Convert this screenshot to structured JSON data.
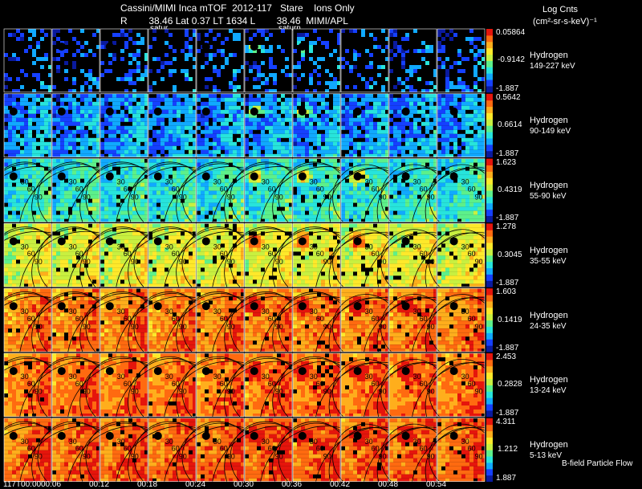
{
  "header": {
    "line1": "Cassini/MIMI Inca mTOF  2012-117   Stare    Ions Only",
    "line2": "R        38.46 Lat 0.37 LT 1634 L        38.46  MIMI/APL",
    "units_title": "Log Cnts",
    "units_expr": "(cm²-sr-s-keV)⁻¹"
  },
  "saturn_labels": [
    "satur",
    "saturn"
  ],
  "footer_label": "B-field Particle Flow",
  "chart_data": {
    "type": "heatmap",
    "title": "Cassini/MIMI Inca mTOF 2012-117 Stare Ions Only",
    "x_tick_labels": [
      "117T00:00",
      "00:06",
      "00:12",
      "00:18",
      "00:24",
      "00:30",
      "00:36",
      "00:42",
      "00:48",
      "00:54"
    ],
    "contour_labels": [
      "30",
      "60",
      "90"
    ],
    "colormap": [
      "#0a1a9e",
      "#1540ff",
      "#10a9ff",
      "#27e4dc",
      "#5df08a",
      "#c8f040",
      "#ffe92a",
      "#ffae1c",
      "#ff6a10",
      "#e5150c"
    ],
    "rows": [
      {
        "species": "Hydrogen",
        "energy": "149-227 keV",
        "cb_max": "0.05864",
        "cb_mid": "-0.9142",
        "cb_min": "-1.887",
        "level": 0.08,
        "dark": 0.6
      },
      {
        "species": "Hydrogen",
        "energy": "90-149 keV",
        "cb_max": "0.5642",
        "cb_mid": "0.6614",
        "cb_min": "-1.887",
        "level": 0.14,
        "dark": 0.15
      },
      {
        "species": "Hydrogen",
        "energy": "55-90 keV",
        "cb_max": "1.623",
        "cb_mid": "0.4319",
        "cb_min": "-1.887",
        "level": 0.27,
        "dark": 0.05
      },
      {
        "species": "Hydrogen",
        "energy": "35-55 keV",
        "cb_max": "1.278",
        "cb_mid": "0.3045",
        "cb_min": "-1.887",
        "level": 0.5,
        "dark": 0.06
      },
      {
        "species": "Hydrogen",
        "energy": "24-35 keV",
        "cb_max": "1.603",
        "cb_mid": "0.1419",
        "cb_min": "-1.887",
        "level": 0.72,
        "dark": 0.04
      },
      {
        "species": "Hydrogen",
        "energy": "13-24 keV",
        "cb_max": "2.453",
        "cb_mid": "0.2828",
        "cb_min": "-1.887",
        "level": 0.74,
        "dark": 0.03
      },
      {
        "species": "Hydrogen",
        "energy": "5-13 keV",
        "cb_max": "4.311",
        "cb_mid": "1.212",
        "cb_min": "1.887",
        "level": 0.76,
        "dark": 0.03
      }
    ]
  }
}
